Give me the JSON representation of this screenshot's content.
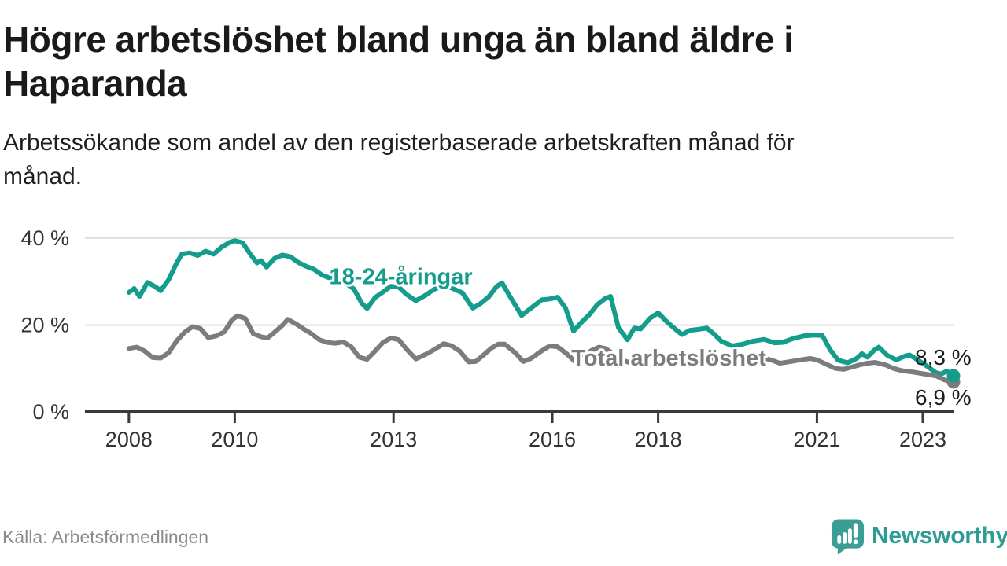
{
  "header": {
    "title": "Högre arbetslöshet bland unga än bland äldre i Haparanda",
    "subtitle": "Arbetssökande som andel av den registerbaserade arbetskraften månad för månad."
  },
  "footer": {
    "source": "Källa: Arbetsförmedlingen",
    "brand": "Newsworthy",
    "logo_icon": "bar-chart-speech-bubble-icon",
    "brand_color": "#2f9c94"
  },
  "chart_data": {
    "type": "line",
    "title": "Högre arbetslöshet bland unga än bland äldre i Haparanda",
    "ylabel": "",
    "xlabel": "",
    "grid": "horizontal",
    "legend_position": "inline-labels",
    "x_axis": {
      "range": [
        2007.17,
        2023.58
      ],
      "ticks": [
        2008,
        2010,
        2013,
        2016,
        2018,
        2021,
        2023
      ],
      "tick_labels": [
        "2008",
        "2010",
        "2013",
        "2016",
        "2018",
        "2021",
        "2023"
      ]
    },
    "y_axis": {
      "range": [
        0,
        44.5
      ],
      "ticks": [
        0,
        20,
        40
      ],
      "tick_labels": [
        "0 %",
        "20 %",
        "40 %"
      ]
    },
    "style": {
      "grid_color": "#dedede",
      "axis_color": "#3a3a3a",
      "axis_label_color": "#333333",
      "end_label_color": "#1d1d1d"
    },
    "series": [
      {
        "name": "18-24-åringar",
        "data_name": "youth-18-24",
        "color": "#149c8c",
        "end_label": "8,3 %",
        "end_value": 8.3,
        "end_dot": true,
        "label_position": {
          "x": 2013.14,
          "y": 31.2
        },
        "points": [
          [
            2008.0,
            27.5
          ],
          [
            2008.1,
            28.4
          ],
          [
            2008.2,
            26.6
          ],
          [
            2008.35,
            29.8
          ],
          [
            2008.5,
            28.8
          ],
          [
            2008.6,
            27.9
          ],
          [
            2008.75,
            30.4
          ],
          [
            2008.9,
            34.2
          ],
          [
            2009.0,
            36.3
          ],
          [
            2009.15,
            36.6
          ],
          [
            2009.3,
            36.0
          ],
          [
            2009.45,
            37.0
          ],
          [
            2009.6,
            36.3
          ],
          [
            2009.75,
            37.9
          ],
          [
            2009.9,
            39.0
          ],
          [
            2010.0,
            39.4
          ],
          [
            2010.15,
            38.9
          ],
          [
            2010.3,
            36.2
          ],
          [
            2010.42,
            34.3
          ],
          [
            2010.5,
            34.8
          ],
          [
            2010.6,
            33.3
          ],
          [
            2010.75,
            35.3
          ],
          [
            2010.9,
            36.1
          ],
          [
            2011.05,
            35.7
          ],
          [
            2011.2,
            34.4
          ],
          [
            2011.35,
            33.5
          ],
          [
            2011.5,
            32.8
          ],
          [
            2011.65,
            31.5
          ],
          [
            2011.8,
            30.8
          ],
          [
            2011.95,
            30.3
          ],
          [
            2012.1,
            29.6
          ],
          [
            2012.25,
            28.3
          ],
          [
            2012.4,
            25.0
          ],
          [
            2012.5,
            23.8
          ],
          [
            2012.65,
            26.3
          ],
          [
            2012.8,
            27.6
          ],
          [
            2012.95,
            28.9
          ],
          [
            2013.1,
            28.7
          ],
          [
            2013.25,
            27.0
          ],
          [
            2013.42,
            25.6
          ],
          [
            2013.6,
            26.8
          ],
          [
            2013.75,
            28.1
          ],
          [
            2013.95,
            29.2
          ],
          [
            2014.1,
            28.5
          ],
          [
            2014.3,
            27.4
          ],
          [
            2014.5,
            23.9
          ],
          [
            2014.65,
            25.0
          ],
          [
            2014.8,
            26.5
          ],
          [
            2014.95,
            28.9
          ],
          [
            2015.05,
            29.7
          ],
          [
            2015.2,
            26.6
          ],
          [
            2015.42,
            22.2
          ],
          [
            2015.6,
            23.9
          ],
          [
            2015.8,
            25.8
          ],
          [
            2015.95,
            26.0
          ],
          [
            2016.1,
            26.4
          ],
          [
            2016.25,
            23.9
          ],
          [
            2016.4,
            18.6
          ],
          [
            2016.55,
            20.6
          ],
          [
            2016.7,
            22.4
          ],
          [
            2016.85,
            24.7
          ],
          [
            2017.0,
            26.1
          ],
          [
            2017.1,
            26.6
          ],
          [
            2017.25,
            19.4
          ],
          [
            2017.42,
            16.6
          ],
          [
            2017.55,
            19.3
          ],
          [
            2017.67,
            19.1
          ],
          [
            2017.85,
            21.6
          ],
          [
            2018.0,
            22.8
          ],
          [
            2018.17,
            20.7
          ],
          [
            2018.33,
            19.0
          ],
          [
            2018.45,
            17.8
          ],
          [
            2018.6,
            18.8
          ],
          [
            2018.75,
            19.0
          ],
          [
            2018.92,
            19.3
          ],
          [
            2019.05,
            18.0
          ],
          [
            2019.2,
            16.2
          ],
          [
            2019.4,
            15.2
          ],
          [
            2019.6,
            15.6
          ],
          [
            2019.8,
            16.3
          ],
          [
            2020.0,
            16.7
          ],
          [
            2020.2,
            15.9
          ],
          [
            2020.35,
            16.0
          ],
          [
            2020.55,
            16.9
          ],
          [
            2020.75,
            17.5
          ],
          [
            2020.95,
            17.7
          ],
          [
            2021.1,
            17.6
          ],
          [
            2021.25,
            14.3
          ],
          [
            2021.4,
            11.9
          ],
          [
            2021.58,
            11.3
          ],
          [
            2021.75,
            12.3
          ],
          [
            2021.85,
            13.4
          ],
          [
            2021.95,
            12.6
          ],
          [
            2022.1,
            14.4
          ],
          [
            2022.17,
            14.9
          ],
          [
            2022.33,
            13.0
          ],
          [
            2022.5,
            12.0
          ],
          [
            2022.67,
            12.9
          ],
          [
            2022.75,
            13.1
          ],
          [
            2022.9,
            12.0
          ],
          [
            2023.05,
            10.8
          ],
          [
            2023.25,
            9.0
          ],
          [
            2023.35,
            8.7
          ],
          [
            2023.45,
            9.4
          ],
          [
            2023.58,
            8.3
          ]
        ]
      },
      {
        "name": "Total arbetslöshet",
        "data_name": "total-unemployment",
        "color": "#7b7c7e",
        "end_label": "6,9 %",
        "end_value": 6.9,
        "end_dot": true,
        "label_position": {
          "x": 2018.2,
          "y": 12.5
        },
        "points": [
          [
            2008.0,
            14.6
          ],
          [
            2008.15,
            14.9
          ],
          [
            2008.3,
            14.0
          ],
          [
            2008.45,
            12.5
          ],
          [
            2008.6,
            12.4
          ],
          [
            2008.75,
            13.6
          ],
          [
            2008.9,
            16.3
          ],
          [
            2009.05,
            18.3
          ],
          [
            2009.2,
            19.6
          ],
          [
            2009.35,
            19.2
          ],
          [
            2009.5,
            17.1
          ],
          [
            2009.65,
            17.5
          ],
          [
            2009.8,
            18.4
          ],
          [
            2009.95,
            21.2
          ],
          [
            2010.05,
            22.1
          ],
          [
            2010.2,
            21.5
          ],
          [
            2010.35,
            18.0
          ],
          [
            2010.5,
            17.3
          ],
          [
            2010.62,
            17.0
          ],
          [
            2010.75,
            18.3
          ],
          [
            2010.9,
            19.9
          ],
          [
            2011.0,
            21.3
          ],
          [
            2011.15,
            20.3
          ],
          [
            2011.3,
            19.1
          ],
          [
            2011.45,
            18.0
          ],
          [
            2011.6,
            16.6
          ],
          [
            2011.75,
            16.0
          ],
          [
            2011.9,
            15.8
          ],
          [
            2012.05,
            16.1
          ],
          [
            2012.2,
            15.0
          ],
          [
            2012.35,
            12.6
          ],
          [
            2012.5,
            12.1
          ],
          [
            2012.65,
            14.0
          ],
          [
            2012.8,
            16.0
          ],
          [
            2012.95,
            17.0
          ],
          [
            2013.1,
            16.6
          ],
          [
            2013.25,
            14.4
          ],
          [
            2013.42,
            12.2
          ],
          [
            2013.6,
            13.2
          ],
          [
            2013.75,
            14.2
          ],
          [
            2013.95,
            15.7
          ],
          [
            2014.1,
            15.2
          ],
          [
            2014.25,
            14.0
          ],
          [
            2014.42,
            11.5
          ],
          [
            2014.55,
            11.6
          ],
          [
            2014.7,
            13.1
          ],
          [
            2014.85,
            14.7
          ],
          [
            2014.98,
            15.6
          ],
          [
            2015.1,
            15.6
          ],
          [
            2015.3,
            13.6
          ],
          [
            2015.45,
            11.6
          ],
          [
            2015.6,
            12.3
          ],
          [
            2015.78,
            13.9
          ],
          [
            2015.95,
            15.2
          ],
          [
            2016.1,
            15.0
          ],
          [
            2016.28,
            13.3
          ],
          [
            2016.42,
            11.7
          ],
          [
            2016.6,
            12.9
          ],
          [
            2016.75,
            14.2
          ],
          [
            2016.88,
            14.9
          ],
          [
            2017.0,
            14.6
          ],
          [
            2017.15,
            13.4
          ],
          [
            2017.32,
            11.9
          ],
          [
            2017.45,
            11.4
          ],
          [
            2017.6,
            12.0
          ],
          [
            2017.78,
            12.7
          ],
          [
            2017.95,
            13.4
          ],
          [
            2018.1,
            13.0
          ],
          [
            2018.25,
            12.0
          ],
          [
            2018.42,
            11.1
          ],
          [
            2018.55,
            11.2
          ],
          [
            2018.7,
            11.8
          ],
          [
            2018.9,
            12.5
          ],
          [
            2019.05,
            12.3
          ],
          [
            2019.25,
            11.5
          ],
          [
            2019.42,
            11.3
          ],
          [
            2019.6,
            11.9
          ],
          [
            2019.8,
            12.4
          ],
          [
            2019.95,
            12.5
          ],
          [
            2020.15,
            11.9
          ],
          [
            2020.3,
            11.2
          ],
          [
            2020.5,
            11.6
          ],
          [
            2020.7,
            12.0
          ],
          [
            2020.87,
            12.3
          ],
          [
            2021.0,
            12.0
          ],
          [
            2021.17,
            11.0
          ],
          [
            2021.35,
            10.0
          ],
          [
            2021.5,
            9.8
          ],
          [
            2021.65,
            10.3
          ],
          [
            2021.8,
            10.8
          ],
          [
            2021.95,
            11.2
          ],
          [
            2022.1,
            11.4
          ],
          [
            2022.3,
            10.8
          ],
          [
            2022.45,
            10.0
          ],
          [
            2022.6,
            9.5
          ],
          [
            2022.8,
            9.2
          ],
          [
            2022.95,
            8.9
          ],
          [
            2023.1,
            8.6
          ],
          [
            2023.25,
            8.3
          ],
          [
            2023.4,
            7.4
          ],
          [
            2023.5,
            7.1
          ],
          [
            2023.58,
            6.9
          ]
        ]
      }
    ]
  }
}
